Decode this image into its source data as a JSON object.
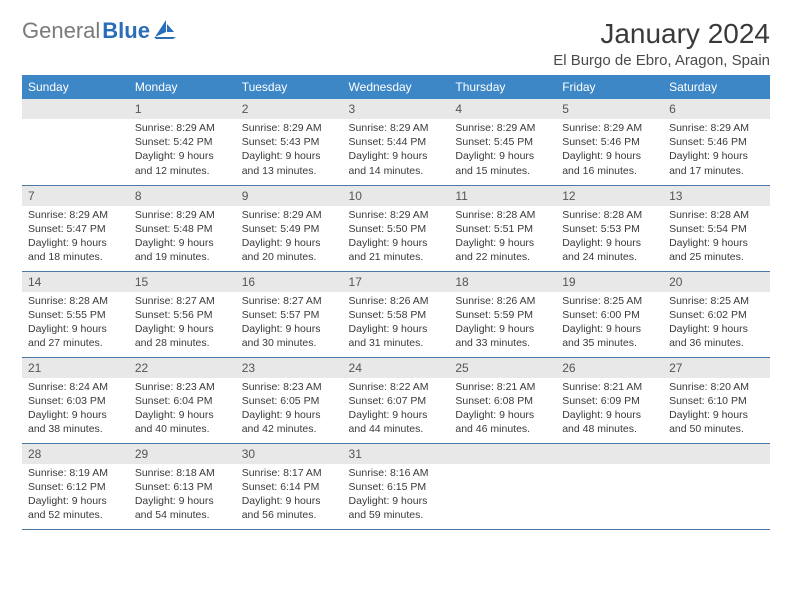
{
  "logo": {
    "gray": "General",
    "blue": "Blue"
  },
  "title": "January 2024",
  "location": "El Burgo de Ebro, Aragon, Spain",
  "colors": {
    "header_bg": "#3d87c7",
    "header_text": "#ffffff",
    "daynum_bg": "#e8e8e8",
    "row_divider": "#4a7aa8",
    "logo_gray": "#7a7a7a",
    "logo_blue": "#2a6db8"
  },
  "weekdays": [
    "Sunday",
    "Monday",
    "Tuesday",
    "Wednesday",
    "Thursday",
    "Friday",
    "Saturday"
  ],
  "weeks": [
    [
      null,
      {
        "n": "1",
        "sr": "Sunrise: 8:29 AM",
        "ss": "Sunset: 5:42 PM",
        "d1": "Daylight: 9 hours",
        "d2": "and 12 minutes."
      },
      {
        "n": "2",
        "sr": "Sunrise: 8:29 AM",
        "ss": "Sunset: 5:43 PM",
        "d1": "Daylight: 9 hours",
        "d2": "and 13 minutes."
      },
      {
        "n": "3",
        "sr": "Sunrise: 8:29 AM",
        "ss": "Sunset: 5:44 PM",
        "d1": "Daylight: 9 hours",
        "d2": "and 14 minutes."
      },
      {
        "n": "4",
        "sr": "Sunrise: 8:29 AM",
        "ss": "Sunset: 5:45 PM",
        "d1": "Daylight: 9 hours",
        "d2": "and 15 minutes."
      },
      {
        "n": "5",
        "sr": "Sunrise: 8:29 AM",
        "ss": "Sunset: 5:46 PM",
        "d1": "Daylight: 9 hours",
        "d2": "and 16 minutes."
      },
      {
        "n": "6",
        "sr": "Sunrise: 8:29 AM",
        "ss": "Sunset: 5:46 PM",
        "d1": "Daylight: 9 hours",
        "d2": "and 17 minutes."
      }
    ],
    [
      {
        "n": "7",
        "sr": "Sunrise: 8:29 AM",
        "ss": "Sunset: 5:47 PM",
        "d1": "Daylight: 9 hours",
        "d2": "and 18 minutes."
      },
      {
        "n": "8",
        "sr": "Sunrise: 8:29 AM",
        "ss": "Sunset: 5:48 PM",
        "d1": "Daylight: 9 hours",
        "d2": "and 19 minutes."
      },
      {
        "n": "9",
        "sr": "Sunrise: 8:29 AM",
        "ss": "Sunset: 5:49 PM",
        "d1": "Daylight: 9 hours",
        "d2": "and 20 minutes."
      },
      {
        "n": "10",
        "sr": "Sunrise: 8:29 AM",
        "ss": "Sunset: 5:50 PM",
        "d1": "Daylight: 9 hours",
        "d2": "and 21 minutes."
      },
      {
        "n": "11",
        "sr": "Sunrise: 8:28 AM",
        "ss": "Sunset: 5:51 PM",
        "d1": "Daylight: 9 hours",
        "d2": "and 22 minutes."
      },
      {
        "n": "12",
        "sr": "Sunrise: 8:28 AM",
        "ss": "Sunset: 5:53 PM",
        "d1": "Daylight: 9 hours",
        "d2": "and 24 minutes."
      },
      {
        "n": "13",
        "sr": "Sunrise: 8:28 AM",
        "ss": "Sunset: 5:54 PM",
        "d1": "Daylight: 9 hours",
        "d2": "and 25 minutes."
      }
    ],
    [
      {
        "n": "14",
        "sr": "Sunrise: 8:28 AM",
        "ss": "Sunset: 5:55 PM",
        "d1": "Daylight: 9 hours",
        "d2": "and 27 minutes."
      },
      {
        "n": "15",
        "sr": "Sunrise: 8:27 AM",
        "ss": "Sunset: 5:56 PM",
        "d1": "Daylight: 9 hours",
        "d2": "and 28 minutes."
      },
      {
        "n": "16",
        "sr": "Sunrise: 8:27 AM",
        "ss": "Sunset: 5:57 PM",
        "d1": "Daylight: 9 hours",
        "d2": "and 30 minutes."
      },
      {
        "n": "17",
        "sr": "Sunrise: 8:26 AM",
        "ss": "Sunset: 5:58 PM",
        "d1": "Daylight: 9 hours",
        "d2": "and 31 minutes."
      },
      {
        "n": "18",
        "sr": "Sunrise: 8:26 AM",
        "ss": "Sunset: 5:59 PM",
        "d1": "Daylight: 9 hours",
        "d2": "and 33 minutes."
      },
      {
        "n": "19",
        "sr": "Sunrise: 8:25 AM",
        "ss": "Sunset: 6:00 PM",
        "d1": "Daylight: 9 hours",
        "d2": "and 35 minutes."
      },
      {
        "n": "20",
        "sr": "Sunrise: 8:25 AM",
        "ss": "Sunset: 6:02 PM",
        "d1": "Daylight: 9 hours",
        "d2": "and 36 minutes."
      }
    ],
    [
      {
        "n": "21",
        "sr": "Sunrise: 8:24 AM",
        "ss": "Sunset: 6:03 PM",
        "d1": "Daylight: 9 hours",
        "d2": "and 38 minutes."
      },
      {
        "n": "22",
        "sr": "Sunrise: 8:23 AM",
        "ss": "Sunset: 6:04 PM",
        "d1": "Daylight: 9 hours",
        "d2": "and 40 minutes."
      },
      {
        "n": "23",
        "sr": "Sunrise: 8:23 AM",
        "ss": "Sunset: 6:05 PM",
        "d1": "Daylight: 9 hours",
        "d2": "and 42 minutes."
      },
      {
        "n": "24",
        "sr": "Sunrise: 8:22 AM",
        "ss": "Sunset: 6:07 PM",
        "d1": "Daylight: 9 hours",
        "d2": "and 44 minutes."
      },
      {
        "n": "25",
        "sr": "Sunrise: 8:21 AM",
        "ss": "Sunset: 6:08 PM",
        "d1": "Daylight: 9 hours",
        "d2": "and 46 minutes."
      },
      {
        "n": "26",
        "sr": "Sunrise: 8:21 AM",
        "ss": "Sunset: 6:09 PM",
        "d1": "Daylight: 9 hours",
        "d2": "and 48 minutes."
      },
      {
        "n": "27",
        "sr": "Sunrise: 8:20 AM",
        "ss": "Sunset: 6:10 PM",
        "d1": "Daylight: 9 hours",
        "d2": "and 50 minutes."
      }
    ],
    [
      {
        "n": "28",
        "sr": "Sunrise: 8:19 AM",
        "ss": "Sunset: 6:12 PM",
        "d1": "Daylight: 9 hours",
        "d2": "and 52 minutes."
      },
      {
        "n": "29",
        "sr": "Sunrise: 8:18 AM",
        "ss": "Sunset: 6:13 PM",
        "d1": "Daylight: 9 hours",
        "d2": "and 54 minutes."
      },
      {
        "n": "30",
        "sr": "Sunrise: 8:17 AM",
        "ss": "Sunset: 6:14 PM",
        "d1": "Daylight: 9 hours",
        "d2": "and 56 minutes."
      },
      {
        "n": "31",
        "sr": "Sunrise: 8:16 AM",
        "ss": "Sunset: 6:15 PM",
        "d1": "Daylight: 9 hours",
        "d2": "and 59 minutes."
      },
      null,
      null,
      null
    ]
  ]
}
